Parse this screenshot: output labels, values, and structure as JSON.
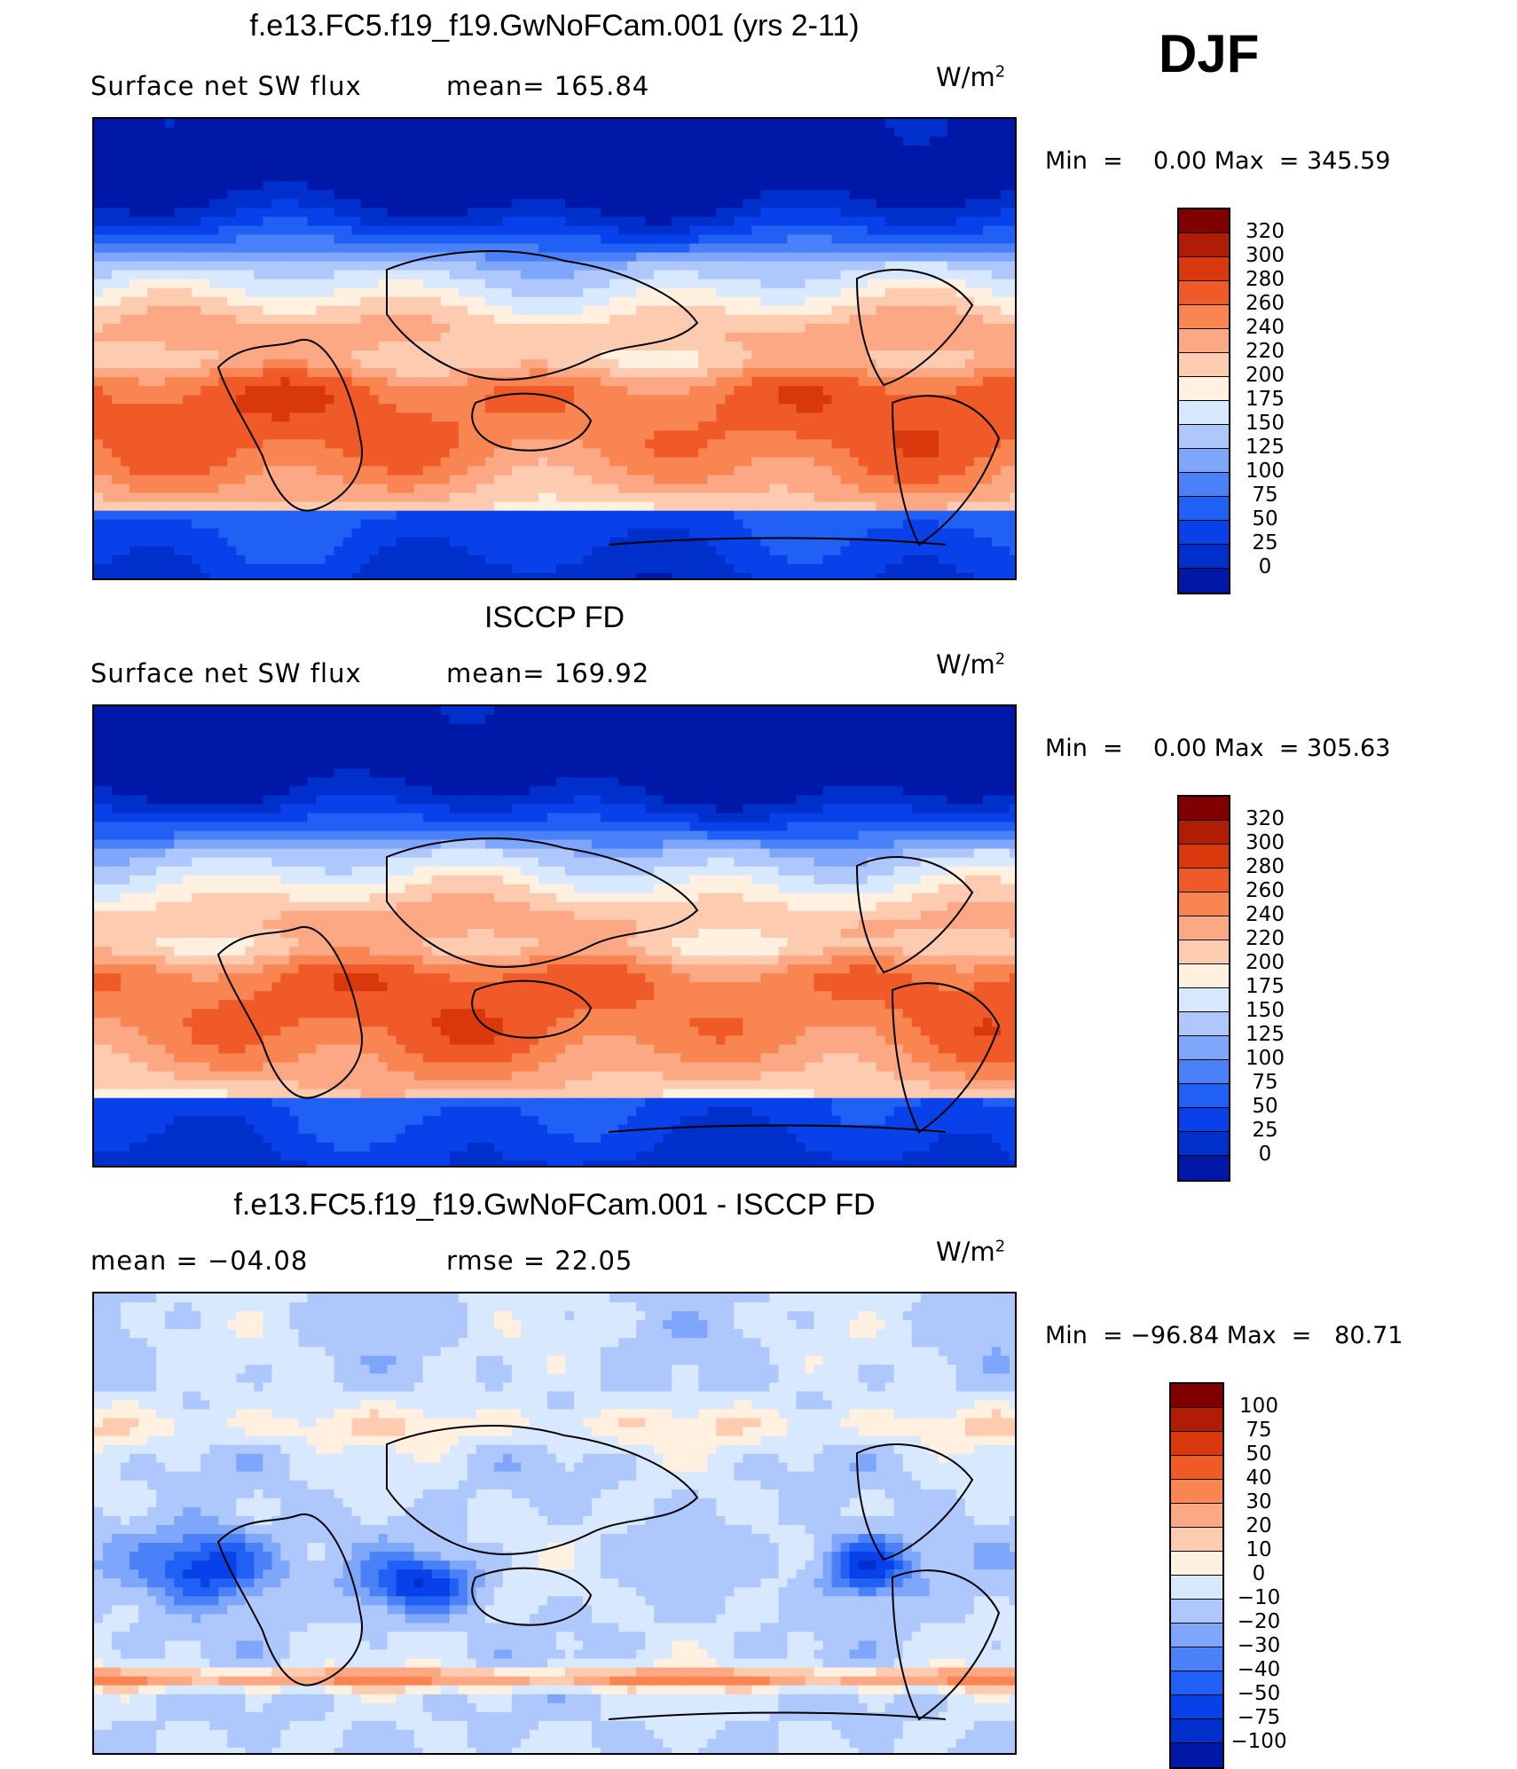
{
  "season": "DJF",
  "colors": {
    "abs": [
      "#00008c",
      "#0018a8",
      "#0030cc",
      "#0840ea",
      "#2060f4",
      "#4a80f8",
      "#7ea6fb",
      "#aec8fd",
      "#d8e8fe",
      "#fff0e0",
      "#fdcbb0",
      "#fca884",
      "#f98652",
      "#ef5a28",
      "#d8380c",
      "#b01c04",
      "#800000"
    ],
    "diff": [
      "#00008c",
      "#0018a8",
      "#0030cc",
      "#0840ea",
      "#2060f4",
      "#4a80f8",
      "#7ea6fb",
      "#aec8fd",
      "#d8e8fe",
      "#fff0e0",
      "#fdcbb0",
      "#fca884",
      "#f98652",
      "#ef5a28",
      "#d8380c",
      "#b01c04",
      "#800000"
    ]
  },
  "panels": [
    {
      "title": "f.e13.FC5.f19_f19.GwNoFCam.001 (yrs 2-11)",
      "left_text": "Surface net SW flux",
      "stat_text": "mean=  165.84",
      "units": "W/m",
      "units_exp": "2",
      "min_label": "Min  =",
      "min_value": "0.00",
      "max_label": "Max  =",
      "max_value": "345.59",
      "levels": [
        "320",
        "300",
        "280",
        "260",
        "240",
        "220",
        "200",
        "175",
        "150",
        "125",
        "100",
        "75",
        "50",
        "25",
        "0"
      ],
      "palette": "abs"
    },
    {
      "title": "ISCCP FD",
      "left_text": "Surface net SW flux",
      "stat_text": "mean=  169.92",
      "units": "W/m",
      "units_exp": "2",
      "min_label": "Min  =",
      "min_value": "0.00",
      "max_label": "Max  =",
      "max_value": "305.63",
      "levels": [
        "320",
        "300",
        "280",
        "260",
        "240",
        "220",
        "200",
        "175",
        "150",
        "125",
        "100",
        "75",
        "50",
        "25",
        "0"
      ],
      "palette": "abs"
    },
    {
      "title": "f.e13.FC5.f19_f19.GwNoFCam.001 - ISCCP FD",
      "left_text": "mean  =    −04.08",
      "stat_text": "rmse  =    22.05",
      "units": "W/m",
      "units_exp": "2",
      "min_label": "Min  =",
      "min_value": "−96.84",
      "max_label": "Max  =",
      "max_value": "80.71",
      "levels": [
        "100",
        "75",
        "50",
        "40",
        "30",
        "20",
        "10",
        "0",
        "−10",
        "−20",
        "−30",
        "−40",
        "−50",
        "−75",
        "−100"
      ],
      "palette": "diff"
    }
  ],
  "chart_data": [
    {
      "type": "heatmap",
      "title": "f.e13.FC5.f19_f19.GwNoFCam.001 (yrs 2-11)",
      "subtitle": "Surface net SW flux",
      "units": "W/m2",
      "mean": 165.84,
      "min": 0.0,
      "max": 345.59,
      "contour_levels": [
        0,
        25,
        50,
        75,
        100,
        125,
        150,
        175,
        200,
        220,
        240,
        260,
        280,
        300,
        320
      ]
    },
    {
      "type": "heatmap",
      "title": "ISCCP FD",
      "subtitle": "Surface net SW flux",
      "units": "W/m2",
      "mean": 169.92,
      "min": 0.0,
      "max": 305.63,
      "contour_levels": [
        0,
        25,
        50,
        75,
        100,
        125,
        150,
        175,
        200,
        220,
        240,
        260,
        280,
        300,
        320
      ]
    },
    {
      "type": "heatmap",
      "title": "f.e13.FC5.f19_f19.GwNoFCam.001 - ISCCP FD",
      "units": "W/m2",
      "mean": -4.08,
      "rmse": 22.05,
      "min": -96.84,
      "max": 80.71,
      "contour_levels": [
        -100,
        -75,
        -50,
        -40,
        -30,
        -20,
        -10,
        0,
        10,
        20,
        30,
        40,
        50,
        75,
        100
      ]
    }
  ]
}
